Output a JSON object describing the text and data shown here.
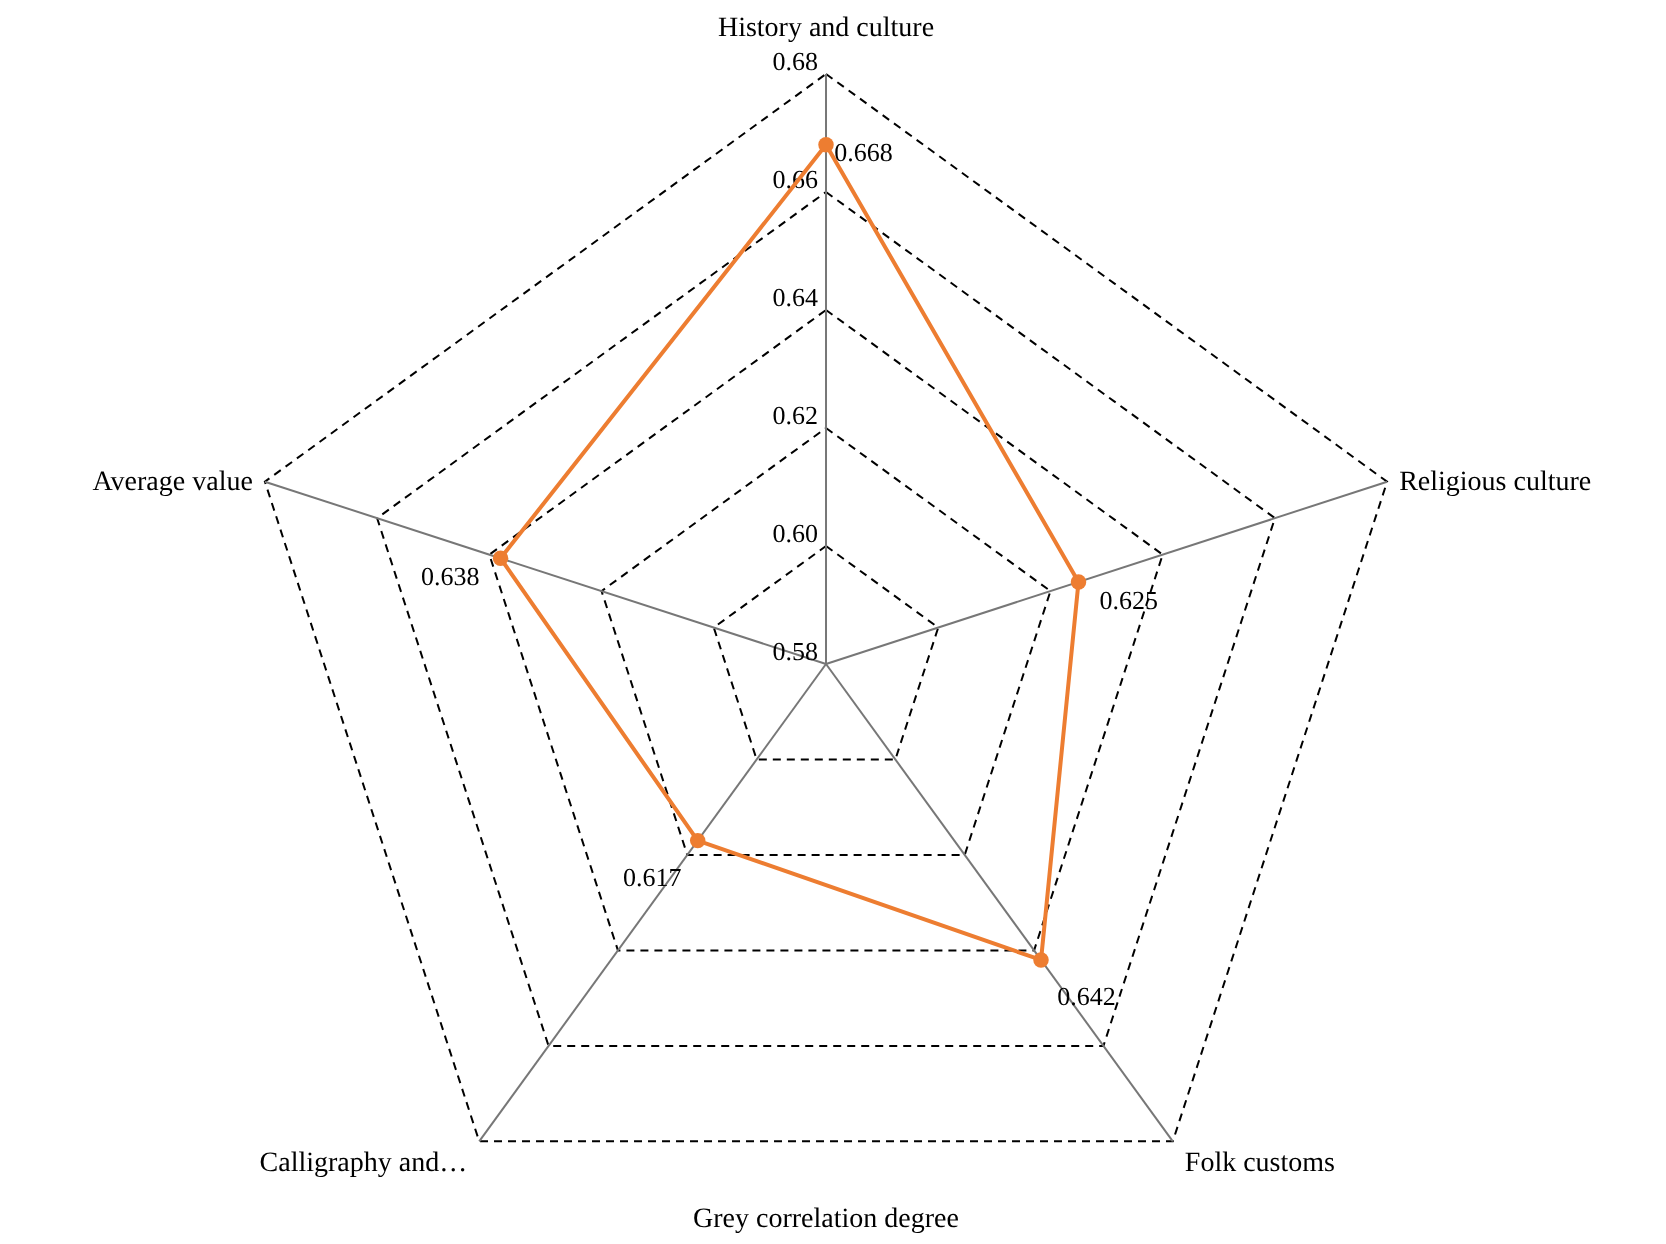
{
  "chart_data": {
    "type": "radar",
    "xlabel": "Grey correlation degree",
    "categories": [
      "History and culture",
      "Religious culture",
      "Folk customs",
      "Calligraphy and…",
      "Average value"
    ],
    "series": [
      {
        "color": "#ed7d31",
        "values": [
          0.668,
          0.625,
          0.642,
          0.617,
          0.638
        ]
      }
    ],
    "ylim": [
      0.58,
      0.68
    ],
    "yticks": [
      0.58,
      {
        "value": 0.6,
        "label": "0.60"
      },
      0.62,
      0.64,
      0.66,
      0.68
    ],
    "grid": true,
    "marker": "circle",
    "line_style": "solid",
    "data_labels": true
  }
}
